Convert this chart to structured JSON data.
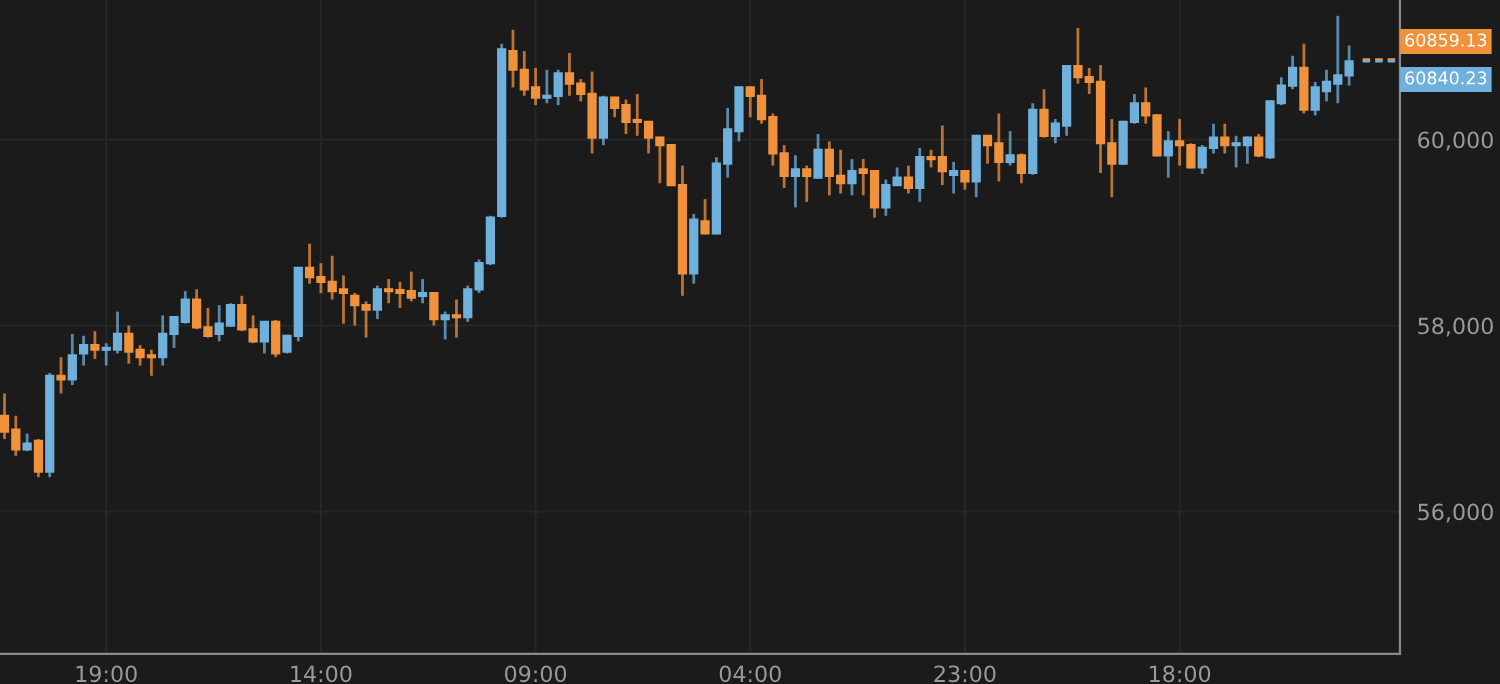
{
  "chart_data": {
    "type": "candlestick",
    "categories": [
      null,
      null,
      null,
      null,
      null,
      null,
      null,
      null,
      null,
      "19:00",
      null,
      null,
      null,
      null,
      null,
      null,
      null,
      null,
      null,
      null,
      null,
      null,
      null,
      null,
      null,
      null,
      null,
      null,
      "14:00",
      null,
      null,
      null,
      null,
      null,
      null,
      null,
      null,
      null,
      null,
      null,
      null,
      null,
      null,
      null,
      null,
      null,
      null,
      "09:00",
      null,
      null,
      null,
      null,
      null,
      null,
      null,
      null,
      null,
      null,
      null,
      null,
      null,
      null,
      null,
      null,
      null,
      null,
      "04:00",
      null,
      null,
      null,
      null,
      null,
      null,
      null,
      null,
      null,
      null,
      null,
      null,
      null,
      null,
      null,
      null,
      null,
      null,
      "23:00",
      null,
      null,
      null,
      null,
      null,
      null,
      null,
      null,
      null,
      null,
      null,
      null,
      null,
      null,
      null,
      null,
      null,
      null,
      "18:00",
      null,
      null,
      null,
      null,
      null,
      null,
      null,
      null,
      null,
      null,
      null,
      null,
      null,
      null,
      null
    ],
    "ohlc": [
      [
        57030,
        57270,
        56780,
        56860
      ],
      [
        56880,
        57030,
        56600,
        56670
      ],
      [
        56670,
        56840,
        56650,
        56730
      ],
      [
        56760,
        56780,
        56370,
        56430
      ],
      [
        56430,
        57490,
        56370,
        57460
      ],
      [
        57460,
        57660,
        57270,
        57420
      ],
      [
        57420,
        57910,
        57360,
        57680
      ],
      [
        57700,
        57890,
        57570,
        57790
      ],
      [
        57790,
        57940,
        57640,
        57740
      ],
      [
        57740,
        57810,
        57570,
        57760
      ],
      [
        57740,
        58150,
        57700,
        57910
      ],
      [
        57910,
        58000,
        57590,
        57720
      ],
      [
        57740,
        57790,
        57570,
        57660
      ],
      [
        57680,
        57740,
        57460,
        57660
      ],
      [
        57660,
        58110,
        57570,
        57910
      ],
      [
        57910,
        58100,
        57760,
        58090
      ],
      [
        58040,
        58370,
        58020,
        58280
      ],
      [
        58280,
        58390,
        57960,
        57980
      ],
      [
        57980,
        58190,
        57870,
        57890
      ],
      [
        57910,
        58220,
        57830,
        58020
      ],
      [
        58000,
        58240,
        57990,
        58220
      ],
      [
        58220,
        58320,
        57940,
        57960
      ],
      [
        57960,
        58110,
        57810,
        57830
      ],
      [
        57830,
        58050,
        57700,
        58040
      ],
      [
        58040,
        58060,
        57660,
        57700
      ],
      [
        57720,
        57900,
        57700,
        57890
      ],
      [
        57890,
        58630,
        57830,
        58620
      ],
      [
        58620,
        58880,
        58450,
        58520
      ],
      [
        58520,
        58670,
        58350,
        58470
      ],
      [
        58470,
        58750,
        58280,
        58370
      ],
      [
        58390,
        58540,
        58020,
        58350
      ],
      [
        58320,
        58350,
        58000,
        58220
      ],
      [
        58220,
        58260,
        57870,
        58170
      ],
      [
        58170,
        58430,
        58070,
        58390
      ],
      [
        58390,
        58500,
        58240,
        58370
      ],
      [
        58380,
        58470,
        58190,
        58350
      ],
      [
        58370,
        58580,
        58260,
        58300
      ],
      [
        58320,
        58500,
        58240,
        58350
      ],
      [
        58350,
        58360,
        58000,
        58070
      ],
      [
        58070,
        58150,
        57850,
        58110
      ],
      [
        58110,
        58280,
        57870,
        58090
      ],
      [
        58090,
        58430,
        58040,
        58390
      ],
      [
        58390,
        58710,
        58350,
        58670
      ],
      [
        58670,
        59180,
        58650,
        59160
      ],
      [
        59180,
        61030,
        59160,
        60970
      ],
      [
        60950,
        61180,
        60560,
        60750
      ],
      [
        60750,
        60950,
        60470,
        60540
      ],
      [
        60560,
        60770,
        60370,
        60450
      ],
      [
        60450,
        60750,
        60390,
        60470
      ],
      [
        60470,
        60750,
        60370,
        60710
      ],
      [
        60710,
        60930,
        60470,
        60600
      ],
      [
        60600,
        60650,
        60410,
        60490
      ],
      [
        60490,
        60730,
        59850,
        60020
      ],
      [
        60020,
        60470,
        59940,
        60450
      ],
      [
        60450,
        60460,
        60240,
        60340
      ],
      [
        60370,
        60430,
        60060,
        60190
      ],
      [
        60210,
        60490,
        60040,
        60190
      ],
      [
        60190,
        60200,
        59850,
        60020
      ],
      [
        60020,
        60030,
        59530,
        59940
      ],
      [
        59940,
        59950,
        59500,
        59510
      ],
      [
        59510,
        59720,
        58320,
        58560
      ],
      [
        58560,
        59200,
        58450,
        59140
      ],
      [
        59120,
        59360,
        58980,
        58990
      ],
      [
        58990,
        59810,
        58980,
        59740
      ],
      [
        59740,
        60340,
        59590,
        60110
      ],
      [
        60090,
        60570,
        59980,
        60560
      ],
      [
        60560,
        60570,
        60240,
        60470
      ],
      [
        60470,
        60650,
        60170,
        60220
      ],
      [
        60240,
        60280,
        59720,
        59850
      ],
      [
        59850,
        59940,
        59480,
        59610
      ],
      [
        59610,
        59830,
        59270,
        59680
      ],
      [
        59680,
        59720,
        59330,
        59610
      ],
      [
        59590,
        60060,
        59580,
        59890
      ],
      [
        59890,
        59980,
        59400,
        59610
      ],
      [
        59610,
        59890,
        59420,
        59530
      ],
      [
        59530,
        59790,
        59400,
        59660
      ],
      [
        59680,
        59790,
        59400,
        59640
      ],
      [
        59660,
        59670,
        59160,
        59270
      ],
      [
        59270,
        59570,
        59180,
        59510
      ],
      [
        59510,
        59700,
        59500,
        59590
      ],
      [
        59590,
        59720,
        59420,
        59480
      ],
      [
        59480,
        59910,
        59330,
        59810
      ],
      [
        59810,
        59890,
        59700,
        59790
      ],
      [
        59810,
        60150,
        59510,
        59660
      ],
      [
        59620,
        59760,
        59420,
        59660
      ],
      [
        59660,
        59670,
        59460,
        59550
      ],
      [
        59550,
        60050,
        59380,
        60040
      ],
      [
        60040,
        60050,
        59740,
        59940
      ],
      [
        59960,
        60280,
        59550,
        59760
      ],
      [
        59760,
        60090,
        59720,
        59830
      ],
      [
        59830,
        59850,
        59530,
        59640
      ],
      [
        59640,
        60390,
        59620,
        60320
      ],
      [
        60320,
        60540,
        60020,
        60040
      ],
      [
        60040,
        60220,
        59960,
        60170
      ],
      [
        60150,
        60800,
        60040,
        60790
      ],
      [
        60790,
        61200,
        60600,
        60670
      ],
      [
        60670,
        60770,
        60490,
        60620
      ],
      [
        60620,
        60800,
        59640,
        59960
      ],
      [
        59960,
        60220,
        59380,
        59740
      ],
      [
        59740,
        60200,
        59730,
        60190
      ],
      [
        60190,
        60490,
        60170,
        60390
      ],
      [
        60390,
        60560,
        60170,
        60260
      ],
      [
        60260,
        60270,
        59820,
        59830
      ],
      [
        59830,
        60090,
        59590,
        59980
      ],
      [
        59980,
        60220,
        59720,
        59940
      ],
      [
        59940,
        59960,
        59690,
        59700
      ],
      [
        59700,
        59940,
        59630,
        59910
      ],
      [
        59910,
        60170,
        59850,
        60020
      ],
      [
        60020,
        60170,
        59850,
        59940
      ],
      [
        59940,
        60040,
        59700,
        59960
      ],
      [
        59940,
        60030,
        59740,
        60020
      ],
      [
        60020,
        60060,
        59810,
        59830
      ],
      [
        59810,
        60420,
        59790,
        60410
      ],
      [
        60390,
        60670,
        60370,
        60580
      ],
      [
        60580,
        60900,
        60540,
        60770
      ],
      [
        60770,
        61030,
        60280,
        60320
      ],
      [
        60320,
        60620,
        60260,
        60560
      ],
      [
        60520,
        60750,
        60410,
        60620
      ],
      [
        60600,
        61330,
        60390,
        60690
      ],
      [
        60690,
        61010,
        60580,
        60840
      ]
    ],
    "colors": [
      "#f0923c",
      "#f0923c",
      "#6fb0dc",
      "#f0923c",
      "#6fb0dc",
      "#f0923c",
      "#6fb0dc",
      "#6fb0dc",
      "#f0923c",
      "#6fb0dc",
      "#6fb0dc",
      "#f0923c",
      "#f0923c",
      "#f0923c",
      "#6fb0dc",
      "#6fb0dc",
      "#6fb0dc",
      "#f0923c",
      "#f0923c",
      "#6fb0dc",
      "#6fb0dc",
      "#f0923c",
      "#f0923c",
      "#6fb0dc",
      "#f0923c",
      "#6fb0dc",
      "#6fb0dc",
      "#f0923c",
      "#f0923c",
      "#f0923c",
      "#f0923c",
      "#f0923c",
      "#f0923c",
      "#6fb0dc",
      "#f0923c",
      "#f0923c",
      "#f0923c",
      "#6fb0dc",
      "#f0923c",
      "#6fb0dc",
      "#f0923c",
      "#6fb0dc",
      "#6fb0dc",
      "#6fb0dc",
      "#6fb0dc",
      "#f0923c",
      "#f0923c",
      "#f0923c",
      "#6fb0dc",
      "#6fb0dc",
      "#f0923c",
      "#f0923c",
      "#f0923c",
      "#6fb0dc",
      "#f0923c",
      "#f0923c",
      "#f0923c",
      "#f0923c",
      "#f0923c",
      "#f0923c",
      "#f0923c",
      "#6fb0dc",
      "#f0923c",
      "#6fb0dc",
      "#6fb0dc",
      "#6fb0dc",
      "#f0923c",
      "#f0923c",
      "#f0923c",
      "#f0923c",
      "#6fb0dc",
      "#f0923c",
      "#6fb0dc",
      "#f0923c",
      "#f0923c",
      "#6fb0dc",
      "#f0923c",
      "#f0923c",
      "#6fb0dc",
      "#6fb0dc",
      "#f0923c",
      "#6fb0dc",
      "#f0923c",
      "#f0923c",
      "#6fb0dc",
      "#f0923c",
      "#6fb0dc",
      "#f0923c",
      "#f0923c",
      "#6fb0dc",
      "#f0923c",
      "#6fb0dc",
      "#f0923c",
      "#6fb0dc",
      "#6fb0dc",
      "#f0923c",
      "#f0923c",
      "#f0923c",
      "#f0923c",
      "#6fb0dc",
      "#6fb0dc",
      "#f0923c",
      "#f0923c",
      "#6fb0dc",
      "#f0923c",
      "#f0923c",
      "#6fb0dc",
      "#6fb0dc",
      "#f0923c",
      "#6fb0dc",
      "#6fb0dc",
      "#f0923c",
      "#6fb0dc",
      "#6fb0dc",
      "#6fb0dc",
      "#f0923c",
      "#6fb0dc",
      "#6fb0dc",
      "#6fb0dc",
      "#6fb0dc"
    ],
    "ylim": [
      54470,
      61500
    ],
    "yticks": [
      {
        "value": 56000,
        "label": "56,000"
      },
      {
        "value": 58000,
        "label": "58,000"
      },
      {
        "value": 60000,
        "label": "60,000"
      }
    ],
    "grid": true,
    "ref_lines": [
      {
        "axis": "y",
        "value": 60859.13,
        "label": "60859.13",
        "color": "#f0923c",
        "line_style": "dashed"
      },
      {
        "axis": "y",
        "value": 60840.23,
        "label": "60840.23",
        "color": "#6fb0dc",
        "line_style": "dashed"
      }
    ]
  }
}
